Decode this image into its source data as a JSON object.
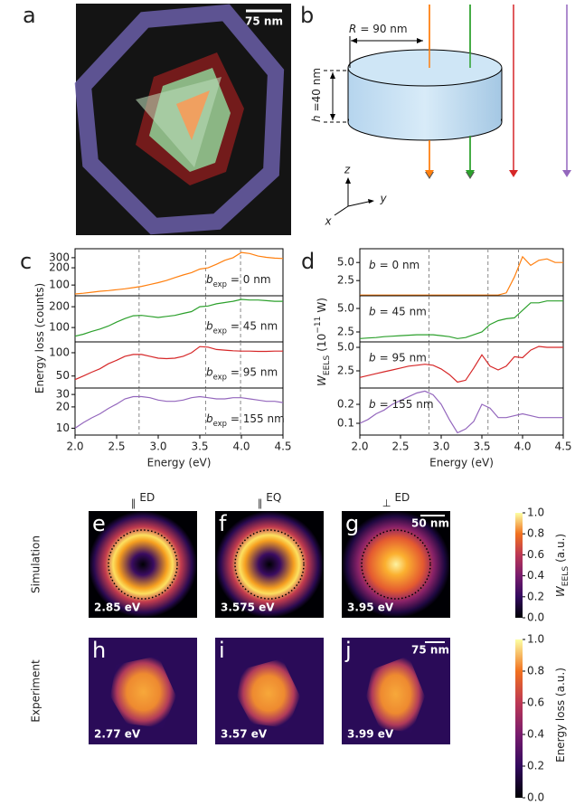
{
  "panel_a": {
    "label": "a",
    "scale_bar": "75 nm"
  },
  "panel_b": {
    "label": "b",
    "radius": {
      "symbol": "R",
      "text": "= 90 nm"
    },
    "height": {
      "symbol": "h",
      "text": "=40 nm"
    },
    "axes": [
      "x",
      "y",
      "z"
    ]
  },
  "panel_c": {
    "label": "c"
  },
  "panel_d": {
    "label": "d"
  },
  "chart_data": [
    {
      "type": "line",
      "log_y": true,
      "xlim": [
        2,
        4.5
      ],
      "ylim": [
        65,
        430
      ],
      "yticks": [
        100,
        200,
        300
      ],
      "ylabel": {
        "text": "Energy loss (counts)"
      },
      "x": [
        2.0,
        2.1,
        2.2,
        2.3,
        2.4,
        2.5,
        2.6,
        2.7,
        2.8,
        2.9,
        3.0,
        3.1,
        3.2,
        3.3,
        3.4,
        3.5,
        3.6,
        3.7,
        3.8,
        3.9,
        4.0,
        4.1,
        4.2,
        4.3,
        4.4,
        4.5
      ],
      "series": [
        {
          "color": "#ff7f0e",
          "values": [
            70,
            72,
            75,
            78,
            80,
            83,
            86,
            90,
            95,
            102,
            110,
            120,
            135,
            150,
            165,
            190,
            200,
            230,
            270,
            300,
            370,
            355,
            320,
            305,
            295,
            290
          ]
        }
      ],
      "vlines": [
        2.77,
        3.57,
        3.99
      ],
      "annotation": {
        "symbol": "b",
        "subscript": "exp",
        "text": "= 0 nm"
      }
    },
    {
      "type": "line",
      "log_y": true,
      "xlim": [
        2,
        4.5
      ],
      "ylim": [
        62,
        288
      ],
      "yticks": [
        100,
        200
      ],
      "x": [
        2.0,
        2.1,
        2.2,
        2.3,
        2.4,
        2.5,
        2.6,
        2.7,
        2.8,
        2.9,
        3.0,
        3.1,
        3.2,
        3.3,
        3.4,
        3.5,
        3.6,
        3.7,
        3.8,
        3.9,
        4.0,
        4.1,
        4.2,
        4.3,
        4.4,
        4.5
      ],
      "series": [
        {
          "color": "#2ca02c",
          "values": [
            75,
            80,
            88,
            95,
            105,
            120,
            135,
            148,
            150,
            145,
            140,
            145,
            150,
            160,
            170,
            200,
            205,
            220,
            230,
            240,
            255,
            250,
            250,
            245,
            240,
            240
          ]
        }
      ],
      "vlines": [
        2.77,
        3.57,
        3.99
      ],
      "annotation": {
        "symbol": "b",
        "subscript": "exp",
        "text": "= 45 nm"
      }
    },
    {
      "type": "line",
      "log_y": true,
      "xlim": [
        2,
        4.5
      ],
      "ylim": [
        35,
        138
      ],
      "yticks": [
        50,
        100
      ],
      "x": [
        2.0,
        2.1,
        2.2,
        2.3,
        2.4,
        2.5,
        2.6,
        2.7,
        2.8,
        2.9,
        3.0,
        3.1,
        3.2,
        3.3,
        3.4,
        3.5,
        3.6,
        3.7,
        3.8,
        3.9,
        4.0,
        4.1,
        4.2,
        4.3,
        4.4,
        4.5
      ],
      "series": [
        {
          "color": "#d62728",
          "values": [
            45,
            50,
            56,
            62,
            72,
            80,
            90,
            95,
            95,
            90,
            85,
            84,
            85,
            90,
            100,
            120,
            118,
            110,
            108,
            106,
            105,
            105,
            104,
            104,
            105,
            105
          ]
        }
      ],
      "vlines": [
        2.77,
        3.57,
        3.99
      ],
      "annotation": {
        "symbol": "b",
        "subscript": "exp",
        "text": "= 95 nm"
      }
    },
    {
      "type": "line",
      "log_y": true,
      "xlim": [
        2,
        4.5
      ],
      "ylim": [
        8,
        37
      ],
      "yticks": [
        10,
        20,
        30
      ],
      "x": [
        2.0,
        2.1,
        2.2,
        2.3,
        2.4,
        2.5,
        2.6,
        2.7,
        2.8,
        2.9,
        3.0,
        3.1,
        3.2,
        3.3,
        3.4,
        3.5,
        3.6,
        3.7,
        3.8,
        3.9,
        4.0,
        4.1,
        4.2,
        4.3,
        4.4,
        4.5
      ],
      "series": [
        {
          "color": "#9467bd",
          "values": [
            10,
            12,
            14,
            16,
            19,
            22,
            26,
            28,
            28,
            27,
            25,
            24,
            24,
            25,
            27,
            28,
            27,
            26,
            26,
            27,
            27,
            26,
            25,
            24,
            24,
            23
          ]
        }
      ],
      "vlines": [
        2.77,
        3.57,
        3.99
      ],
      "annotation": {
        "symbol": "b",
        "subscript": "exp",
        "text": "= 155 nm"
      },
      "xticks": [
        {
          "value": 2,
          "label": "2.0"
        },
        2.5,
        {
          "value": 3,
          "label": "3.0"
        },
        3.5,
        {
          "value": 4,
          "label": "4.0"
        },
        4.5
      ],
      "xlabel": "Energy (eV)"
    },
    {
      "type": "line",
      "log_y": false,
      "xlim": [
        2,
        4.5
      ],
      "ylim": [
        0.4,
        6.9
      ],
      "yticks": [
        2.5,
        {
          "value": 5,
          "label": "5.0"
        }
      ],
      "ylabel": {
        "symbol": "W",
        "subscript": "EELS",
        "text": "(10",
        "superscript": "−11",
        "text_end": "W)"
      },
      "x": [
        2.0,
        2.1,
        2.2,
        2.3,
        2.4,
        2.5,
        2.6,
        2.7,
        2.8,
        2.9,
        3.0,
        3.1,
        3.2,
        3.3,
        3.4,
        3.5,
        3.6,
        3.7,
        3.8,
        3.9,
        4.0,
        4.1,
        4.2,
        4.3,
        4.4,
        4.5
      ],
      "series": [
        {
          "color": "#ff7f0e",
          "values": [
            0.5,
            0.5,
            0.5,
            0.5,
            0.5,
            0.5,
            0.5,
            0.5,
            0.5,
            0.5,
            0.5,
            0.5,
            0.5,
            0.5,
            0.5,
            0.5,
            0.5,
            0.5,
            0.8,
            3.0,
            5.8,
            4.6,
            5.3,
            5.5,
            5.0,
            5.0
          ]
        }
      ],
      "vlines": [
        2.85,
        3.575,
        3.95
      ],
      "annotation": {
        "symbol": "b",
        "text": "= 0 nm"
      }
    },
    {
      "type": "line",
      "log_y": false,
      "xlim": [
        2,
        4.5
      ],
      "ylim": [
        1.44,
        6.35
      ],
      "yticks": [
        2.5,
        {
          "value": 5,
          "label": "5.0"
        }
      ],
      "x": [
        2.0,
        2.1,
        2.2,
        2.3,
        2.4,
        2.5,
        2.6,
        2.7,
        2.8,
        2.9,
        3.0,
        3.1,
        3.2,
        3.3,
        3.4,
        3.5,
        3.6,
        3.7,
        3.8,
        3.9,
        4.0,
        4.1,
        4.2,
        4.3,
        4.4,
        4.5
      ],
      "series": [
        {
          "color": "#2ca02c",
          "values": [
            1.8,
            1.85,
            1.9,
            2.0,
            2.05,
            2.1,
            2.15,
            2.2,
            2.2,
            2.2,
            2.1,
            2.0,
            1.8,
            1.9,
            2.2,
            2.5,
            3.3,
            3.7,
            3.9,
            4.0,
            4.8,
            5.6,
            5.6,
            5.8,
            5.8,
            5.8
          ]
        }
      ],
      "vlines": [
        2.85,
        3.575,
        3.95
      ],
      "annotation": {
        "symbol": "b",
        "text": "= 45 nm"
      }
    },
    {
      "type": "line",
      "log_y": false,
      "xlim": [
        2,
        4.5
      ],
      "ylim": [
        0.67,
        5.58
      ],
      "yticks": [
        2.5,
        {
          "value": 5,
          "label": "5.0"
        }
      ],
      "x": [
        2.0,
        2.1,
        2.2,
        2.3,
        2.4,
        2.5,
        2.6,
        2.7,
        2.8,
        2.9,
        3.0,
        3.1,
        3.2,
        3.3,
        3.4,
        3.5,
        3.6,
        3.7,
        3.8,
        3.9,
        4.0,
        4.1,
        4.2,
        4.3,
        4.4,
        4.5
      ],
      "series": [
        {
          "color": "#d62728",
          "values": [
            1.8,
            2.0,
            2.2,
            2.4,
            2.6,
            2.8,
            3.0,
            3.1,
            3.2,
            3.1,
            2.7,
            2.1,
            1.3,
            1.5,
            2.8,
            4.2,
            3.0,
            2.6,
            3.0,
            4.0,
            3.9,
            4.7,
            5.1,
            5.0,
            5.0,
            5.0
          ]
        }
      ],
      "vlines": [
        2.85,
        3.575,
        3.95
      ],
      "annotation": {
        "symbol": "b",
        "text": "= 95 nm"
      }
    },
    {
      "type": "line",
      "log_y": false,
      "xlim": [
        2,
        4.5
      ],
      "ylim": [
        0.038,
        0.286
      ],
      "yticks": [
        0.1,
        0.2
      ],
      "x": [
        2.0,
        2.1,
        2.2,
        2.3,
        2.4,
        2.5,
        2.6,
        2.7,
        2.8,
        2.9,
        3.0,
        3.1,
        3.2,
        3.3,
        3.4,
        3.5,
        3.6,
        3.7,
        3.8,
        3.9,
        4.0,
        4.1,
        4.2,
        4.3,
        4.4,
        4.5
      ],
      "series": [
        {
          "color": "#9467bd",
          "values": [
            0.1,
            0.12,
            0.15,
            0.17,
            0.2,
            0.22,
            0.24,
            0.26,
            0.27,
            0.25,
            0.2,
            0.12,
            0.05,
            0.07,
            0.11,
            0.2,
            0.18,
            0.13,
            0.13,
            0.14,
            0.15,
            0.14,
            0.13,
            0.13,
            0.13,
            0.13
          ]
        }
      ],
      "vlines": [
        2.85,
        3.575,
        3.95
      ],
      "annotation": {
        "symbol": "b",
        "text": "= 155 nm"
      },
      "xticks": [
        {
          "value": 2,
          "label": "2.0"
        },
        2.5,
        {
          "value": 3,
          "label": "3.0"
        },
        3.5,
        {
          "value": 4,
          "label": "4.0"
        },
        4.5
      ],
      "xlabel": "Energy (eV)"
    }
  ],
  "columns": [
    {
      "text": "ED",
      "subscript": "∥"
    },
    {
      "text": "EQ",
      "subscript": "∥"
    },
    {
      "text": "ED",
      "subscript": "⊥"
    }
  ],
  "rows": [
    "Simulation",
    "Experiment"
  ],
  "images": [
    {
      "label": "e",
      "energy": "2.85 eV"
    },
    {
      "label": "f",
      "energy": "3.575 eV"
    },
    {
      "label": "g",
      "energy": "3.95 eV",
      "scale_bar": "50 nm"
    },
    {
      "label": "h",
      "energy": "2.77 eV"
    },
    {
      "label": "i",
      "energy": "3.57 eV"
    },
    {
      "label": "j",
      "energy": "3.99 eV",
      "scale_bar": "75 nm"
    }
  ],
  "colorbars": [
    {
      "lim": [
        0,
        1
      ],
      "ticks": [
        {
          "value": 0,
          "label": "0.0"
        },
        0.2,
        0.4,
        0.6,
        0.8,
        {
          "value": 1,
          "label": "1.0"
        }
      ],
      "label": {
        "symbol": "W",
        "subscript": "EELS",
        "text": "(a.u.)"
      }
    },
    {
      "lim": [
        0,
        1
      ],
      "ticks": [
        {
          "value": 0,
          "label": "0.0"
        },
        0.2,
        0.4,
        0.6,
        0.8,
        {
          "value": 1,
          "label": "1.0"
        }
      ],
      "label": {
        "text": "Energy loss (a.u.)"
      }
    }
  ]
}
